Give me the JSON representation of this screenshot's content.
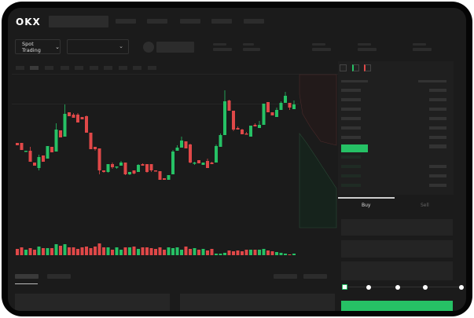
{
  "header": {
    "logo": "OKX"
  },
  "controls": {
    "market_dropdown": "Spot Trading",
    "chevron": "⌄"
  },
  "order_form": {
    "tabs": [
      "Buy",
      "Sell"
    ],
    "active_tab": "Buy",
    "slider_level_percent": 0,
    "slider_steps": [
      0,
      25,
      50,
      75,
      100
    ]
  },
  "colors": {
    "up": "#26c165",
    "down": "#e04848",
    "background": "#1b1b1b",
    "accent": "#26c165"
  },
  "chart_data": {
    "type": "candlestick",
    "note_axes": "none printed",
    "candles": [
      [
        68,
        65,
        68,
        65
      ],
      [
        68,
        59,
        68,
        59
      ],
      [
        57,
        58,
        58,
        57
      ],
      [
        58,
        44,
        63,
        44
      ],
      [
        43,
        39,
        43,
        39
      ],
      [
        36,
        50,
        53,
        33
      ],
      [
        52,
        44,
        52,
        44
      ],
      [
        48,
        64,
        64,
        48
      ],
      [
        63,
        56,
        63,
        56
      ],
      [
        57,
        85,
        93,
        57
      ],
      [
        84,
        75,
        84,
        75
      ],
      [
        76,
        105,
        117,
        76
      ],
      [
        107,
        102,
        107,
        102
      ],
      [
        104,
        100,
        106,
        100
      ],
      [
        104,
        94,
        106,
        94
      ],
      [
        101,
        98,
        101,
        98
      ],
      [
        102,
        81,
        103,
        81
      ],
      [
        81,
        60,
        81,
        60
      ],
      [
        63,
        60,
        63,
        58
      ],
      [
        61,
        33,
        61,
        28
      ],
      [
        33,
        31,
        33,
        30
      ],
      [
        31,
        41,
        41,
        30
      ],
      [
        41,
        37,
        43,
        35
      ],
      [
        37,
        38,
        38,
        35
      ],
      [
        39,
        43,
        45,
        39
      ],
      [
        43,
        28,
        43,
        27
      ],
      [
        28,
        31,
        31,
        27
      ],
      [
        33,
        29,
        33,
        28
      ],
      [
        31,
        40,
        41,
        31
      ],
      [
        41,
        39,
        42,
        39
      ],
      [
        41,
        31,
        41,
        30
      ],
      [
        41,
        33,
        41,
        31
      ],
      [
        33,
        32,
        33,
        32
      ],
      [
        32,
        21,
        32,
        21
      ],
      [
        23,
        21,
        23,
        21
      ],
      [
        21,
        27,
        27,
        21
      ],
      [
        28,
        57,
        59,
        28
      ],
      [
        58,
        62,
        65,
        58
      ],
      [
        62,
        71,
        76,
        62
      ],
      [
        70,
        61,
        70,
        61
      ],
      [
        66,
        43,
        67,
        42
      ],
      [
        42,
        43,
        44,
        40
      ],
      [
        46,
        42,
        46,
        42
      ],
      [
        40,
        43,
        43,
        40
      ],
      [
        45,
        36,
        48,
        36
      ],
      [
        43,
        41,
        44,
        41
      ],
      [
        43,
        64,
        66,
        43
      ],
      [
        63,
        78,
        80,
        63
      ],
      [
        78,
        121,
        135,
        78
      ],
      [
        122,
        109,
        123,
        109
      ],
      [
        109,
        85,
        109,
        83
      ],
      [
        87,
        85,
        89,
        85
      ],
      [
        85,
        79,
        86,
        79
      ],
      [
        80,
        79,
        82,
        79
      ],
      [
        76,
        90,
        90,
        76
      ],
      [
        91,
        89,
        93,
        89
      ],
      [
        87,
        91,
        96,
        87
      ],
      [
        91,
        118,
        118,
        91
      ],
      [
        120,
        107,
        120,
        107
      ],
      [
        107,
        103,
        107,
        103
      ],
      [
        101,
        110,
        113,
        101
      ],
      [
        110,
        119,
        121,
        110
      ],
      [
        119,
        128,
        133,
        119
      ],
      [
        119,
        113,
        119,
        110
      ],
      [
        111,
        117,
        122,
        111
      ]
    ],
    "candle_fields": [
      "open",
      "close",
      "high",
      "low"
    ],
    "volume": [
      8,
      10,
      7,
      9,
      7,
      11,
      9,
      9,
      9,
      14,
      12,
      14,
      10,
      10,
      8,
      10,
      11,
      9,
      11,
      15,
      10,
      10,
      7,
      10,
      7,
      10,
      10,
      11,
      8,
      10,
      10,
      9,
      8,
      10,
      7,
      10,
      9,
      10,
      7,
      11,
      8,
      9,
      7,
      8,
      6,
      8,
      2,
      2,
      3,
      6,
      5,
      6,
      5,
      7,
      7,
      7,
      7,
      8,
      6,
      5,
      4,
      3,
      2,
      1,
      2
    ]
  }
}
